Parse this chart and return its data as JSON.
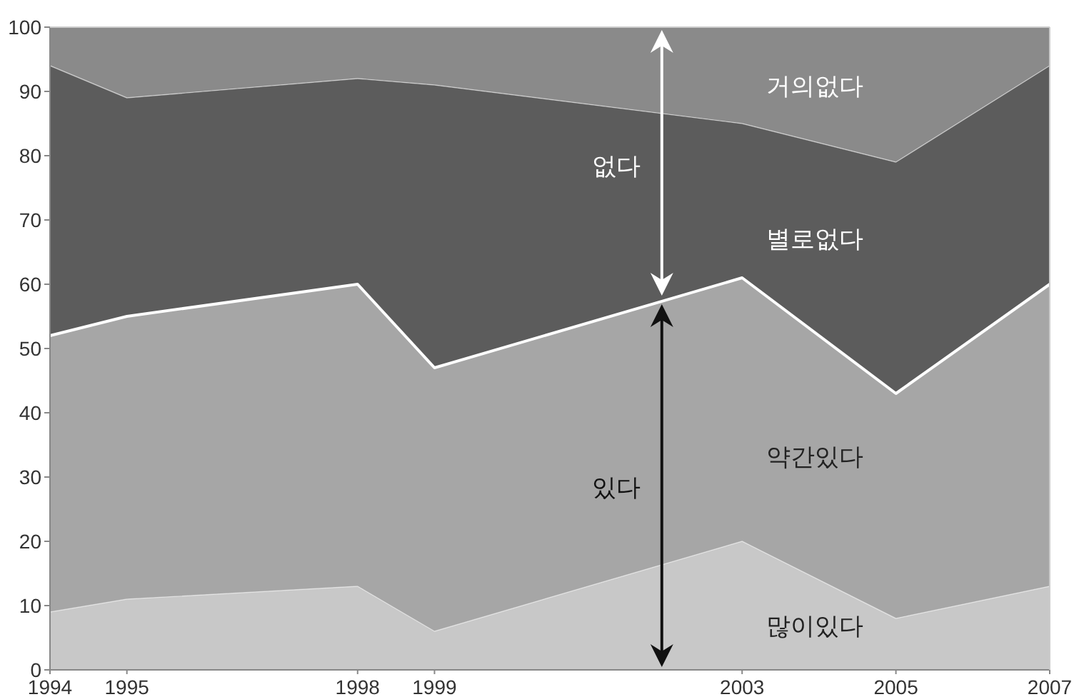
{
  "chart_data": {
    "type": "area",
    "stacked": true,
    "x": [
      1994,
      1995,
      1998,
      1999,
      2003,
      2005,
      2007
    ],
    "xlim": [
      1994,
      2007
    ],
    "xticks": [
      1994,
      1995,
      1998,
      1999,
      2003,
      2005,
      2007
    ],
    "ylim": [
      0,
      100
    ],
    "yticks": [
      0,
      10,
      20,
      30,
      40,
      50,
      60,
      70,
      80,
      90,
      100
    ],
    "grid": false,
    "series": [
      {
        "name": "많이있다",
        "color": "#c8c8c8",
        "values": [
          9,
          11,
          13,
          6,
          20,
          8,
          13
        ]
      },
      {
        "name": "약간있다",
        "color": "#a6a6a6",
        "values": [
          43,
          44,
          47,
          41,
          41,
          35,
          47
        ]
      },
      {
        "name": "별로없다",
        "color": "#5c5c5c",
        "values": [
          42,
          34,
          32,
          44,
          24,
          36,
          34
        ]
      },
      {
        "name": "거의없다",
        "color": "#8a8a8a",
        "values": [
          6,
          11,
          8,
          9,
          15,
          21,
          6
        ]
      }
    ],
    "annotations": [
      "없다",
      "있다"
    ]
  }
}
